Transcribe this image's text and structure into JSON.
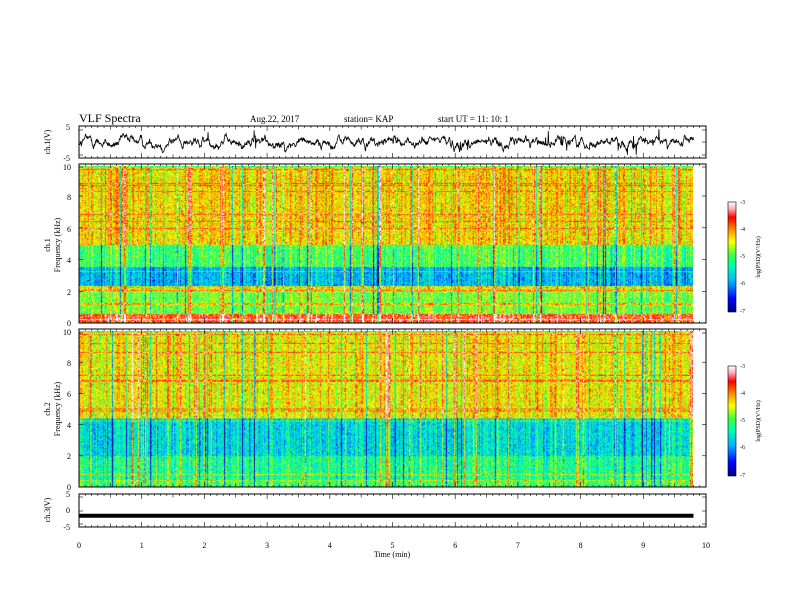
{
  "header": {
    "title": "VLF Spectra",
    "date": "Aug.22, 2017",
    "station": "station= KAP",
    "start": "start  UT =   11: 10: 1"
  },
  "colors": {
    "colormap": [
      "#000080",
      "#0000ff",
      "#00b4ff",
      "#00ffb0",
      "#40ff40",
      "#ffff00",
      "#ff8000",
      "#ff0000",
      "#ffb0c0",
      "#ffffff"
    ],
    "trace": "#000000"
  },
  "chart_data": [
    {
      "type": "line",
      "panel": "ch1-waveform",
      "ylabel": "ch.1(V)",
      "ylim": [
        -5,
        5
      ],
      "yticks": [
        "5",
        "-5"
      ],
      "xlim": [
        0,
        10
      ],
      "description_values": "noisy waveform fluctuating roughly between -3.5 V and 3.5 V over ~9.8 min"
    },
    {
      "type": "heatmap",
      "panel": "ch1-spectrogram",
      "ylabel": "ch.1\nFrequency (kHz)",
      "ylim": [
        0,
        10
      ],
      "yticks": [
        "0",
        "2",
        "4",
        "6",
        "8",
        "10"
      ],
      "xlim": [
        0,
        9.8
      ],
      "colorbar": {
        "label": "log(PSD)(V²/Hz)",
        "range": [
          -7,
          -3
        ],
        "ticks": [
          "-3",
          "-4",
          "-5",
          "-6",
          "-7"
        ]
      },
      "bands": [
        {
          "f": [
            0,
            0.6
          ],
          "level": -3.6
        },
        {
          "f": [
            0.6,
            2.0
          ],
          "level": -4.8
        },
        {
          "f": [
            2.0,
            2.4
          ],
          "level": -4.4
        },
        {
          "f": [
            2.4,
            3.6
          ],
          "level": -5.8
        },
        {
          "f": [
            3.6,
            5.0
          ],
          "level": -5.0
        },
        {
          "f": [
            5.0,
            10
          ],
          "level": -4.3
        }
      ]
    },
    {
      "type": "heatmap",
      "panel": "ch2-spectrogram",
      "ylabel": "ch.2\nFrequency (kHz)",
      "ylim": [
        0,
        10
      ],
      "yticks": [
        "0",
        "2",
        "4",
        "6",
        "8",
        "10"
      ],
      "xlim": [
        0,
        9.8
      ],
      "colorbar": {
        "label": "log(PSD)(V²/Hz)",
        "range": [
          -7,
          -3
        ],
        "ticks": [
          "-3",
          "-4",
          "-5",
          "-6",
          "-7"
        ]
      },
      "bands": [
        {
          "f": [
            0,
            0.4
          ],
          "level": -5.0
        },
        {
          "f": [
            0.4,
            2.0
          ],
          "level": -5.2
        },
        {
          "f": [
            2.0,
            4.4
          ],
          "level": -5.6
        },
        {
          "f": [
            4.4,
            10
          ],
          "level": -4.4
        }
      ]
    },
    {
      "type": "line",
      "panel": "ch3-waveform",
      "ylabel": "ch.3(V)",
      "ylim": [
        -5,
        5
      ],
      "yticks": [
        "5",
        "0",
        "-5"
      ],
      "xlim": [
        0,
        10
      ],
      "x": [
        0,
        9.8
      ],
      "y": [
        -1.6,
        -1.6
      ]
    }
  ],
  "xaxis": {
    "label": "Time (min)",
    "ticks": [
      "0",
      "1",
      "2",
      "3",
      "4",
      "5",
      "6",
      "7",
      "8",
      "9",
      "10"
    ]
  }
}
